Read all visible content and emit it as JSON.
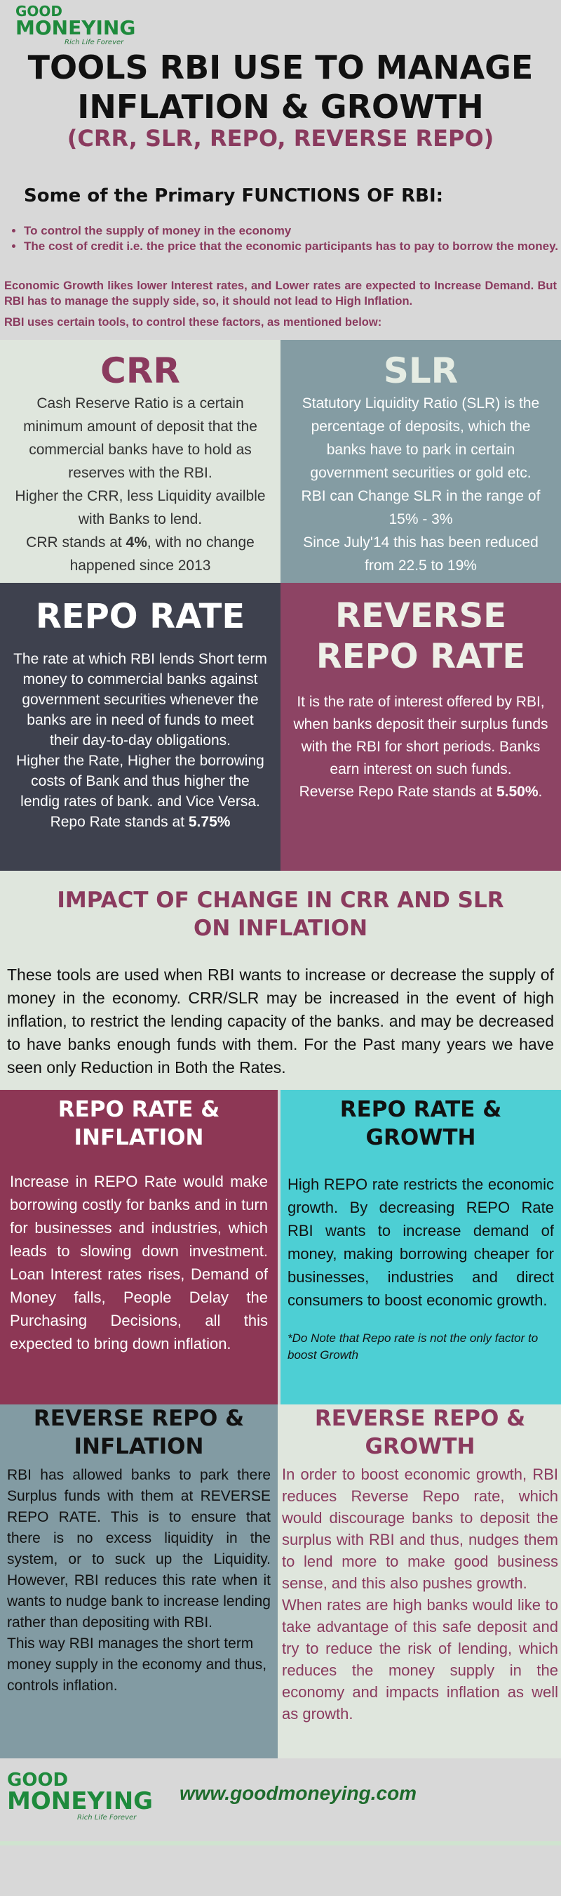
{
  "brand": {
    "logo_line1": "GOOD",
    "logo_line2": "MONEYING",
    "tagline": "Rich Life Forever",
    "website": "www.goodmoneying.com"
  },
  "header": {
    "title_line1": "TOOLS RBI USE TO MANAGE",
    "title_line2": "INFLATION & GROWTH",
    "subtitle": "(CRR, SLR, REPO, REVERSE REPO)"
  },
  "functions": {
    "heading": "Some of the Primary FUNCTIONS OF RBI:",
    "bullets": [
      "To control the supply of money in the economy",
      "The cost of credit i.e. the price that the economic participants has to pay to borrow the money."
    ],
    "para1": "Economic Growth likes lower Interest rates, and Lower rates are expected to Increase Demand. But RBI has to manage the supply side, so, it should not lead to High Inflation.",
    "para2": "RBI uses certain tools, to control these factors, as mentioned below:"
  },
  "crr": {
    "title": "CRR",
    "p1": "Cash Reserve Ratio is a certain minimum amount of deposit that the commercial banks have to hold as reserves with the RBI.",
    "p2": "Higher the CRR, less Liquidity availble with Banks to lend.",
    "p3_pre": "CRR stands at ",
    "p3_bold": "4%",
    "p3_post": ", with no change happened since 2013"
  },
  "slr": {
    "title": "SLR",
    "p1": "Statutory Liquidity Ratio (SLR) is the percentage of deposits, which the banks have to park in certain government securities or gold etc.",
    "p2": "RBI can Change SLR in the range of 15% - 3%",
    "p3": "Since July'14 this has been reduced from 22.5 to 19%"
  },
  "repo": {
    "title": "REPO RATE",
    "p1": "The rate at which RBI lends Short term money to commercial banks against government securities whenever the banks are in need of funds to meet their day-to-day obligations.",
    "p2": "Higher the Rate, Higher the borrowing costs of Bank and thus higher the lendig rates of bank. and Vice Versa.",
    "p3_pre": "Repo Rate stands at ",
    "p3_bold": "5.75%"
  },
  "reverse_repo": {
    "title_line1": "REVERSE",
    "title_line2": "REPO RATE",
    "p1": "It is the rate of interest offered by RBI, when banks deposit their surplus funds with the RBI for short periods.  Banks earn interest on such funds.",
    "p2_pre": "Reverse  Repo Rate stands at ",
    "p2_bold": "5.50%",
    "p2_post": "."
  },
  "impact": {
    "title": "IMPACT OF CHANGE IN CRR AND SLR ON INFLATION",
    "body": "These tools are used when RBI wants to increase or decrease the supply of money in the economy. CRR/SLR may be increased in the event of high inflation, to restrict the lending capacity of the banks. and may be decreased to have banks enough funds with them. For the Past many years we have seen only Reduction in Both the Rates."
  },
  "repo_inflation": {
    "title": "REPO RATE & INFLATION",
    "body": "Increase in REPO Rate would make borrowing costly for banks and in turn for businesses and industries, which leads to slowing down investment. Loan Interest rates rises, Demand of Money falls, People Delay the Purchasing Decisions, all this expected to bring down inflation."
  },
  "repo_growth": {
    "title": "REPO RATE & GROWTH",
    "body": "High REPO rate restricts the economic growth. By decreasing REPO Rate RBI wants to increase demand of money, making borrowing cheaper for businesses, industries and direct consumers to boost economic growth.",
    "note": "*Do Note that Repo rate is not the only factor to boost Growth"
  },
  "rr_inflation": {
    "title": "REVERSE REPO & INFLATION",
    "body1": "RBI has allowed banks to park there Surplus funds with them at REVERSE REPO RATE. This is to ensure that there is no excess liquidity in the system, or to suck up the Liquidity. However, RBI reduces this rate when it wants to nudge bank to increase lending rather than depositing with RBI.",
    "body2": "This way RBI manages the short term money supply in the economy and thus, controls inflation."
  },
  "rr_growth": {
    "title": "REVERSE REPO & GROWTH",
    "body1": "In order to boost economic growth, RBI reduces Reverse Repo rate, which would discourage banks to deposit the surplus with RBI and thus, nudges them to lend more to make good business sense, and this also pushes growth.",
    "body2": "When rates are high banks would like to take advantage of this safe deposit and try to reduce the risk of lending, which reduces the money supply in the economy and impacts inflation as well as growth."
  }
}
